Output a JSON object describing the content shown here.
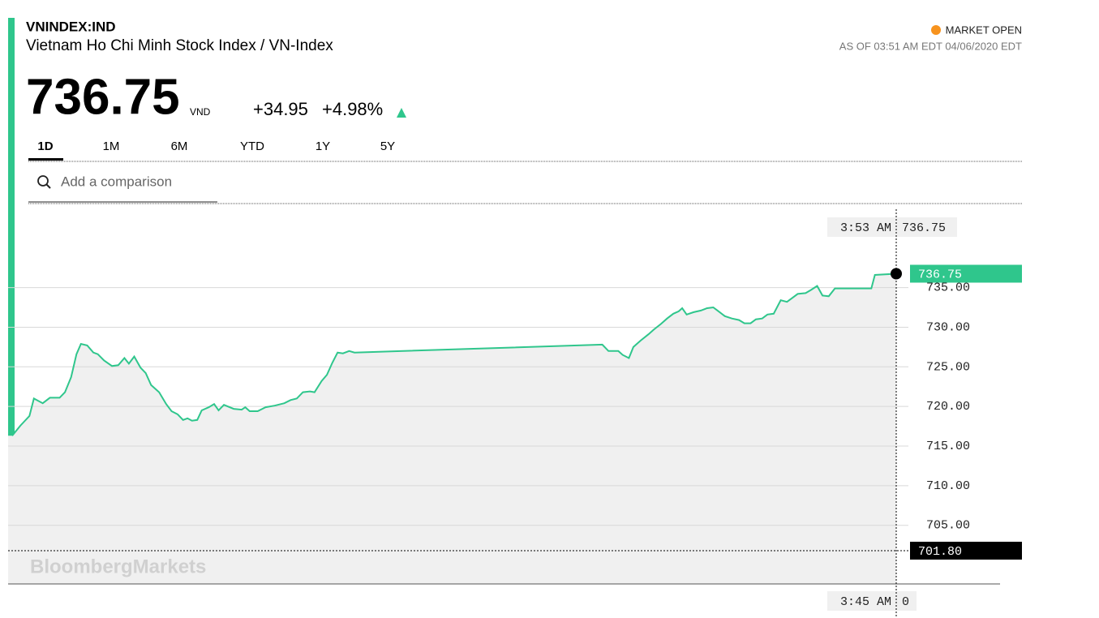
{
  "header": {
    "ticker": "VNINDEX:IND",
    "name": "Vietnam Ho Chi Minh Stock Index / VN-Index",
    "price": "736.75",
    "currency": "VND",
    "change": "+34.95",
    "change_percent": "+4.98%",
    "status": "MARKET OPEN",
    "as_of": "AS OF 03:51 AM EDT 04/06/2020 EDT"
  },
  "tabs": [
    "1D",
    "1M",
    "6M",
    "YTD",
    "1Y",
    "5Y"
  ],
  "search": {
    "placeholder": "Add a comparison"
  },
  "chart_data": {
    "type": "line",
    "color": "#2fc68c",
    "area_color": "#f0f0f0",
    "x": [
      0.46,
      1.4,
      2.4,
      2.9,
      3.9,
      4.7,
      5.8,
      6.4,
      7.1,
      7.7,
      8.2,
      8.9,
      9.6,
      10.1,
      10.8,
      11.7,
      12.4,
      13.1,
      13.6,
      14.2,
      14.9,
      15.5,
      16.1,
      17.0,
      17.8,
      18.4,
      19.1,
      19.7,
      20.2,
      20.7,
      21.3,
      21.8,
      22.6,
      23.2,
      23.7,
      24.3,
      25.4,
      26.3,
      26.7,
      27.2,
      28.1,
      29.0,
      30.0,
      31.1,
      31.8,
      32.5,
      33.2,
      34.0,
      34.5,
      35.3,
      35.9,
      36.5,
      37.1,
      37.7,
      38.4,
      39.0,
      66.9,
      67.6,
      68.7,
      69.2,
      69.9,
      70.4,
      71.2,
      72.1,
      72.7,
      73.5,
      74.2,
      74.9,
      75.5,
      75.9,
      76.4,
      77.2,
      78.0,
      78.7,
      79.4,
      80.0,
      80.7,
      81.5,
      82.3,
      82.9,
      83.6,
      84.2,
      84.9,
      85.5,
      86.2,
      87.0,
      87.7,
      88.3,
      88.9,
      89.8,
      90.4,
      91.1,
      91.7,
      92.4,
      93.1,
      97.2,
      97.6,
      100
    ],
    "values": [
      716.3,
      717.6,
      718.8,
      721.0,
      720.4,
      721.1,
      721.1,
      721.8,
      723.7,
      726.6,
      727.9,
      727.7,
      726.8,
      726.6,
      725.8,
      725.1,
      725.2,
      726.1,
      725.4,
      726.3,
      724.9,
      724.2,
      722.7,
      721.8,
      720.3,
      719.4,
      719.0,
      718.3,
      718.5,
      718.2,
      718.3,
      719.5,
      719.9,
      720.3,
      719.5,
      720.2,
      719.7,
      719.6,
      719.9,
      719.4,
      719.4,
      719.9,
      720.1,
      720.4,
      720.8,
      721.0,
      721.8,
      721.9,
      721.8,
      723.2,
      724.0,
      725.5,
      726.8,
      726.7,
      727.0,
      726.8,
      727.8,
      727.0,
      727.0,
      726.5,
      726.1,
      727.5,
      728.3,
      729.1,
      729.7,
      730.4,
      731.1,
      731.7,
      732.0,
      732.4,
      731.6,
      731.9,
      732.1,
      732.4,
      732.5,
      732.0,
      731.4,
      731.1,
      730.9,
      730.5,
      730.5,
      731.0,
      731.1,
      731.6,
      731.7,
      733.4,
      733.2,
      733.7,
      734.2,
      734.3,
      734.7,
      735.2,
      734.0,
      733.9,
      734.9,
      734.9,
      736.6,
      736.75
    ],
    "xlim": [
      0,
      100
    ],
    "ylim": [
      697.6,
      745.5
    ],
    "yticks": [
      {
        "value": 705,
        "label": "705.00"
      },
      {
        "value": 710,
        "label": "710.00"
      },
      {
        "value": 715,
        "label": "715.00"
      },
      {
        "value": 720,
        "label": "720.00"
      },
      {
        "value": 725,
        "label": "725.00"
      },
      {
        "value": 730,
        "label": "730.00"
      },
      {
        "value": 735,
        "label": "735.00"
      }
    ],
    "grid": true,
    "last_label": {
      "value": 736.75,
      "label": "736.75"
    },
    "reference_line": {
      "value": 701.8,
      "label": "701.80"
    },
    "crosshair": {
      "top_time": "3:53 AM",
      "top_value": "736.75",
      "bottom_time": "3:45 AM",
      "bottom_value": "0"
    },
    "watermark": "BloombergMarkets"
  }
}
